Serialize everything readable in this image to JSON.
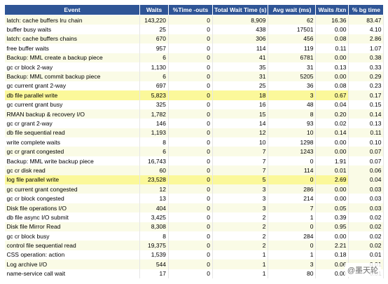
{
  "table": {
    "headers": [
      "Event",
      "Waits",
      "%Time -outs",
      "Total Wait Time (s)",
      "Avg wait (ms)",
      "Waits /txn",
      "% bg time"
    ],
    "rows": [
      [
        "latch: cache buffers lru chain",
        "143,220",
        "0",
        "8,909",
        "62",
        "16.36",
        "83.47"
      ],
      [
        "buffer busy waits",
        "25",
        "0",
        "438",
        "17501",
        "0.00",
        "4.10"
      ],
      [
        "latch: cache buffers chains",
        "670",
        "0",
        "306",
        "456",
        "0.08",
        "2.86"
      ],
      [
        "free buffer waits",
        "957",
        "0",
        "114",
        "119",
        "0.11",
        "1.07"
      ],
      [
        "Backup: MML create a backup piece",
        "6",
        "0",
        "41",
        "6781",
        "0.00",
        "0.38"
      ],
      [
        "gc cr block 2-way",
        "1,130",
        "0",
        "35",
        "31",
        "0.13",
        "0.33"
      ],
      [
        "Backup: MML commit backup piece",
        "6",
        "0",
        "31",
        "5205",
        "0.00",
        "0.29"
      ],
      [
        "gc current grant 2-way",
        "697",
        "0",
        "25",
        "36",
        "0.08",
        "0.23"
      ],
      [
        "db file parallel write",
        "5,823",
        "0",
        "18",
        "3",
        "0.67",
        "0.17"
      ],
      [
        "gc current grant busy",
        "325",
        "0",
        "16",
        "48",
        "0.04",
        "0.15"
      ],
      [
        "RMAN backup & recovery I/O",
        "1,782",
        "0",
        "15",
        "8",
        "0.20",
        "0.14"
      ],
      [
        "gc cr grant 2-way",
        "146",
        "0",
        "14",
        "93",
        "0.02",
        "0.13"
      ],
      [
        "db file sequential read",
        "1,193",
        "0",
        "12",
        "10",
        "0.14",
        "0.11"
      ],
      [
        "write complete waits",
        "8",
        "0",
        "10",
        "1298",
        "0.00",
        "0.10"
      ],
      [
        "gc cr grant congested",
        "6",
        "0",
        "7",
        "1243",
        "0.00",
        "0.07"
      ],
      [
        "Backup: MML write backup piece",
        "16,743",
        "0",
        "7",
        "0",
        "1.91",
        "0.07"
      ],
      [
        "gc cr disk read",
        "60",
        "0",
        "7",
        "114",
        "0.01",
        "0.06"
      ],
      [
        "log file parallel write",
        "23,528",
        "0",
        "5",
        "0",
        "2.69",
        "0.04"
      ],
      [
        "gc current grant congested",
        "12",
        "0",
        "3",
        "286",
        "0.00",
        "0.03"
      ],
      [
        "gc cr block congested",
        "13",
        "0",
        "3",
        "214",
        "0.00",
        "0.03"
      ],
      [
        "Disk file operations I/O",
        "404",
        "0",
        "3",
        "7",
        "0.05",
        "0.03"
      ],
      [
        "db file async I/O submit",
        "3,425",
        "0",
        "2",
        "1",
        "0.39",
        "0.02"
      ],
      [
        "Disk file Mirror Read",
        "8,308",
        "0",
        "2",
        "0",
        "0.95",
        "0.02"
      ],
      [
        "gc cr block busy",
        "8",
        "0",
        "2",
        "284",
        "0.00",
        "0.02"
      ],
      [
        "control file sequential read",
        "19,375",
        "0",
        "2",
        "0",
        "2.21",
        "0.02"
      ],
      [
        "CSS operation: action",
        "1,539",
        "0",
        "1",
        "1",
        "0.18",
        "0.01"
      ],
      [
        "Log archive I/O",
        "544",
        "0",
        "1",
        "3",
        "0.06",
        "0.01"
      ],
      [
        "name-service call wait",
        "17",
        "0",
        "1",
        "80",
        "0.00",
        "0.01"
      ]
    ],
    "highlighted_rows": [
      8,
      17
    ]
  },
  "watermark": "@墨天轮"
}
